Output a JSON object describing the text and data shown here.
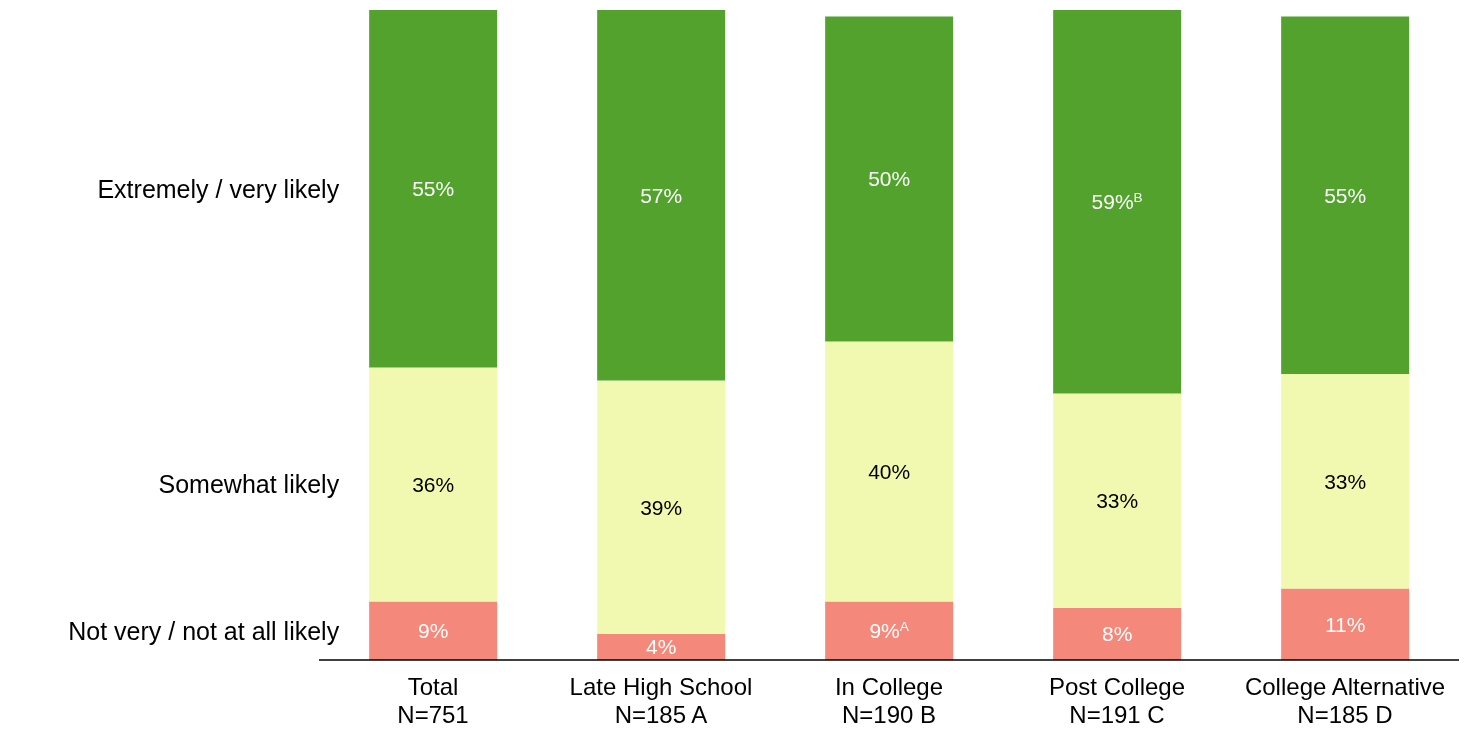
{
  "chart_data": {
    "type": "bar",
    "stacked": true,
    "categories": [
      "Total\nN=751",
      "Late High School\nN=185 A",
      "In College\nN=190 B",
      "Post College\nN=191 C",
      "College Alternative\nN=185 D"
    ],
    "series": [
      {
        "name": "Not very / not at all likely",
        "color": "#f4887a",
        "values": [
          9,
          4,
          9,
          8,
          11
        ],
        "value_labels": [
          "9%",
          "4%",
          "9%$^{A}$",
          "8%",
          "11%"
        ]
      },
      {
        "name": "Somewhat likely",
        "color": "#f1f9b0",
        "values": [
          36,
          39,
          40,
          33,
          33
        ],
        "value_labels": [
          "36%",
          "39%",
          "40%",
          "33%",
          "33%"
        ]
      },
      {
        "name": "Extremely / very likely",
        "color": "#52a22d",
        "values": [
          55,
          57,
          50,
          59,
          55
        ],
        "value_labels": [
          "55%",
          "57%",
          "50%",
          "59%$^{B}$",
          "55%"
        ]
      }
    ]
  }
}
